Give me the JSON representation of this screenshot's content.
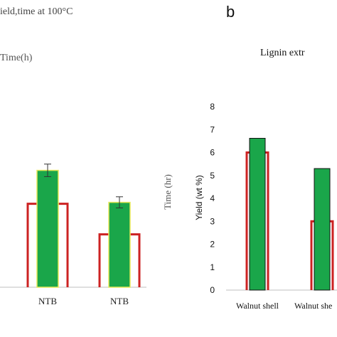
{
  "chart_data": [
    {
      "panel": "a",
      "type": "bar",
      "title": "ield,time at 100°C",
      "ylabel_partial": "Time(h)",
      "categories": [
        "NTB",
        "NTB"
      ],
      "series": [
        {
          "name": "Time",
          "values": [
            6.0,
            3.8
          ],
          "color": "#cc2222",
          "style": "outline"
        },
        {
          "name": "Yield",
          "values": [
            8.4,
            6.1
          ],
          "errors": [
            0.45,
            0.4
          ],
          "color": "#1aa64a",
          "border": "#e9e95a"
        }
      ],
      "ylim": [
        0,
        14
      ]
    },
    {
      "panel": "b",
      "type": "bar",
      "panel_label": "b",
      "title": "Lignin extr",
      "ylabel": "Yield (wt %)",
      "ylabel_right": "Time (hr)",
      "categories": [
        "Walnut shell",
        "Walnut she"
      ],
      "series": [
        {
          "name": "Time",
          "values": [
            6.0,
            3.0
          ],
          "color": "#cc2222",
          "style": "outline"
        },
        {
          "name": "Yield",
          "values": [
            6.62,
            5.3
          ],
          "color": "#1aa64a",
          "border": "#111111"
        }
      ],
      "yticks": [
        0,
        1,
        2,
        3,
        4,
        5,
        6,
        7,
        8
      ],
      "ylim": [
        0,
        8
      ]
    }
  ]
}
